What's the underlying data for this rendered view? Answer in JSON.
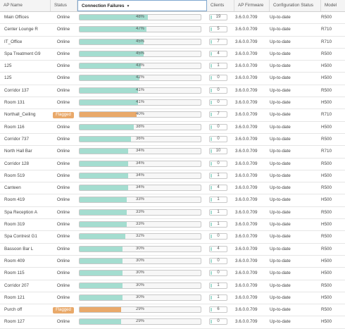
{
  "columns": {
    "name": "AP Name",
    "status": "Status",
    "failures": "Connection Failures",
    "clients": "Clients",
    "firmware": "AP Firmware",
    "config": "Configuration Status",
    "model": "Model"
  },
  "colors": {
    "bar_fill": "#a4ddd0",
    "flagged": "#e9a96a",
    "active_header_border": "#7fa7cf"
  },
  "rows": [
    {
      "name": "Main Offices",
      "status": "Online",
      "failure": "48%",
      "failure_value": 48,
      "clients": "19",
      "firmware": "3.6.0.0.709",
      "config": "Up-to-date",
      "model": "R500"
    },
    {
      "name": "Center Lounge R",
      "status": "Online",
      "failure": "47%",
      "failure_value": 47,
      "clients": "5",
      "firmware": "3.6.0.0.709",
      "config": "Up-to-date",
      "model": "R710"
    },
    {
      "name": "IT_Office",
      "status": "Online",
      "failure": "45%",
      "failure_value": 45,
      "clients": "7",
      "firmware": "3.6.0.0.709",
      "config": "Up-to-date",
      "model": "R710"
    },
    {
      "name": "Spa Treatment G9",
      "status": "Online",
      "failure": "45%",
      "failure_value": 45,
      "clients": "4",
      "firmware": "3.6.0.0.709",
      "config": "Up-to-date",
      "model": "R500"
    },
    {
      "name": "125",
      "status": "Online",
      "failure": "43%",
      "failure_value": 43,
      "clients": "1",
      "firmware": "3.6.0.0.709",
      "config": "Up-to-date",
      "model": "H500"
    },
    {
      "name": "125",
      "status": "Online",
      "failure": "42%",
      "failure_value": 42,
      "clients": "0",
      "firmware": "3.6.0.0.709",
      "config": "Up-to-date",
      "model": "H500"
    },
    {
      "name": "Corridor 137",
      "status": "Online",
      "failure": "41%",
      "failure_value": 41,
      "clients": "0",
      "firmware": "3.6.0.0.709",
      "config": "Up-to-date",
      "model": "R500"
    },
    {
      "name": "Room 131",
      "status": "Online",
      "failure": "41%",
      "failure_value": 41,
      "clients": "0",
      "firmware": "3.6.0.0.709",
      "config": "Up-to-date",
      "model": "H500"
    },
    {
      "name": "Northall_Ceiling",
      "status": "Flagged",
      "failure": "40%",
      "failure_value": 40,
      "clients": "7",
      "firmware": "3.6.0.0.709",
      "config": "Up-to-date",
      "model": "R710"
    },
    {
      "name": "Room 116",
      "status": "Online",
      "failure": "38%",
      "failure_value": 38,
      "clients": "0",
      "firmware": "3.6.0.0.709",
      "config": "Up-to-date",
      "model": "H500"
    },
    {
      "name": "Corridor 737",
      "status": "Online",
      "failure": "36%",
      "failure_value": 36,
      "clients": "0",
      "firmware": "3.6.0.0.709",
      "config": "Up-to-date",
      "model": "R500"
    },
    {
      "name": "North Hall Bar",
      "status": "Online",
      "failure": "34%",
      "failure_value": 34,
      "clients": "10",
      "firmware": "3.6.0.0.709",
      "config": "Up-to-date",
      "model": "R710"
    },
    {
      "name": "Corridor 128",
      "status": "Online",
      "failure": "34%",
      "failure_value": 34,
      "clients": "0",
      "firmware": "3.6.0.0.709",
      "config": "Up-to-date",
      "model": "R500"
    },
    {
      "name": "Room 519",
      "status": "Online",
      "failure": "34%",
      "failure_value": 34,
      "clients": "1",
      "firmware": "3.6.0.0.709",
      "config": "Up-to-date",
      "model": "H500"
    },
    {
      "name": "Canteen",
      "status": "Online",
      "failure": "34%",
      "failure_value": 34,
      "clients": "4",
      "firmware": "3.6.0.0.709",
      "config": "Up-to-date",
      "model": "R500"
    },
    {
      "name": "Room 419",
      "status": "Online",
      "failure": "33%",
      "failure_value": 33,
      "clients": "1",
      "firmware": "3.6.0.0.709",
      "config": "Up-to-date",
      "model": "H500"
    },
    {
      "name": "Spa Reception A",
      "status": "Online",
      "failure": "33%",
      "failure_value": 33,
      "clients": "1",
      "firmware": "3.6.0.0.709",
      "config": "Up-to-date",
      "model": "R500"
    },
    {
      "name": "Room 319",
      "status": "Online",
      "failure": "33%",
      "failure_value": 33,
      "clients": "1",
      "firmware": "3.6.0.0.709",
      "config": "Up-to-date",
      "model": "H500"
    },
    {
      "name": "Spa Contrest G1",
      "status": "Online",
      "failure": "32%",
      "failure_value": 32,
      "clients": "0",
      "firmware": "3.6.0.0.709",
      "config": "Up-to-date",
      "model": "R500"
    },
    {
      "name": "Bassoon Bar L",
      "status": "Online",
      "failure": "30%",
      "failure_value": 30,
      "clients": "4",
      "firmware": "3.6.0.0.709",
      "config": "Up-to-date",
      "model": "R500"
    },
    {
      "name": "Room 409",
      "status": "Online",
      "failure": "30%",
      "failure_value": 30,
      "clients": "0",
      "firmware": "3.6.0.0.709",
      "config": "Up-to-date",
      "model": "H500"
    },
    {
      "name": "Room 115",
      "status": "Online",
      "failure": "30%",
      "failure_value": 30,
      "clients": "0",
      "firmware": "3.6.0.0.709",
      "config": "Up-to-date",
      "model": "H500"
    },
    {
      "name": "Corridor 207",
      "status": "Online",
      "failure": "30%",
      "failure_value": 30,
      "clients": "1",
      "firmware": "3.6.0.0.709",
      "config": "Up-to-date",
      "model": "R500"
    },
    {
      "name": "Room 121",
      "status": "Online",
      "failure": "30%",
      "failure_value": 30,
      "clients": "1",
      "firmware": "3.6.0.0.709",
      "config": "Up-to-date",
      "model": "H500"
    },
    {
      "name": "Purch off",
      "status": "Flagged",
      "failure": "29%",
      "failure_value": 29,
      "clients": "6",
      "firmware": "3.6.0.0.709",
      "config": "Up-to-date",
      "model": "R500"
    },
    {
      "name": "Room 127",
      "status": "Online",
      "failure": "29%",
      "failure_value": 29,
      "clients": "0",
      "firmware": "3.6.0.0.709",
      "config": "Up-to-date",
      "model": "H500"
    }
  ]
}
